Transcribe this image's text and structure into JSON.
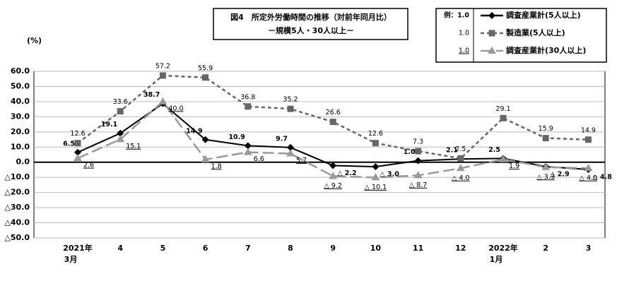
{
  "chart_data": {
    "type": "line",
    "title": "図4　所定外労働時間の推移（対前年同月比）",
    "subtitle": "－規模5人・30人以上－",
    "y_label": "(%)",
    "label_style_examples": [
      "例：1.0",
      "1.0",
      "1.0"
    ],
    "categories": [
      "2021年\n3月",
      "4",
      "5",
      "6",
      "7",
      "8",
      "9",
      "10",
      "11",
      "12",
      "2022年\n1月",
      "2",
      "3"
    ],
    "ylim": [
      -50,
      60
    ],
    "yticks": [
      {
        "value": 60,
        "label": "60.0"
      },
      {
        "value": 50,
        "label": "50.0"
      },
      {
        "value": 40,
        "label": "40.0"
      },
      {
        "value": 30,
        "label": "30.0"
      },
      {
        "value": 20,
        "label": "20.0"
      },
      {
        "value": 10,
        "label": "10.0"
      },
      {
        "value": 0,
        "label": "0.0"
      },
      {
        "value": -10,
        "label": "△10.0"
      },
      {
        "value": -20,
        "label": "△20.0"
      },
      {
        "value": -30,
        "label": "△30.0"
      },
      {
        "value": -40,
        "label": "△40.0"
      },
      {
        "value": -50,
        "label": "△50.0"
      }
    ],
    "grid": true,
    "series": [
      {
        "name": "調査産業計(5人以上)",
        "color": "#000000",
        "dash": "",
        "marker": "diamond",
        "values": [
          6.5,
          19.1,
          38.7,
          14.9,
          10.9,
          9.7,
          -2.2,
          -3.0,
          1.0,
          2.1,
          2.5,
          -2.9,
          -4.8
        ],
        "value_labels": [
          "6.5",
          "19.1",
          "38.7",
          "14.9",
          "10.9",
          "9.7",
          "△ 2.2",
          "△ 3.0",
          "1.0",
          "2.1",
          "2.5",
          "△ 2.9",
          "△ 4.8"
        ]
      },
      {
        "name": "製造業(5人以上)",
        "color": "#666666",
        "dash": "5 4",
        "marker": "square",
        "values": [
          12.6,
          33.6,
          57.2,
          55.9,
          36.8,
          35.2,
          26.6,
          12.6,
          7.3,
          2.5,
          29.1,
          15.9,
          14.9
        ],
        "value_labels": [
          "12.6",
          "33.6",
          "57.2",
          "55.9",
          "36.8",
          "35.2",
          "26.6",
          "12.6",
          "7.3",
          "2.5",
          "29.1",
          "15.9",
          "14.9"
        ]
      },
      {
        "name": "調査産業計(30人以上)",
        "color": "#999999",
        "dash": "16 6",
        "marker": "triangle",
        "values": [
          2.6,
          15.1,
          40.0,
          1.8,
          6.6,
          5.7,
          -9.2,
          -10.1,
          -8.7,
          -4.0,
          1.9,
          -3.3,
          -4.0
        ],
        "value_labels": [
          "2.6",
          "15.1",
          "40.0",
          "1.8",
          "6.6",
          "5.7",
          "△ 9.2",
          "△ 10.1",
          "△ 8.7",
          "△ 4.0",
          "1.9",
          "△ 3.3",
          "△ 4.0"
        ]
      }
    ]
  }
}
